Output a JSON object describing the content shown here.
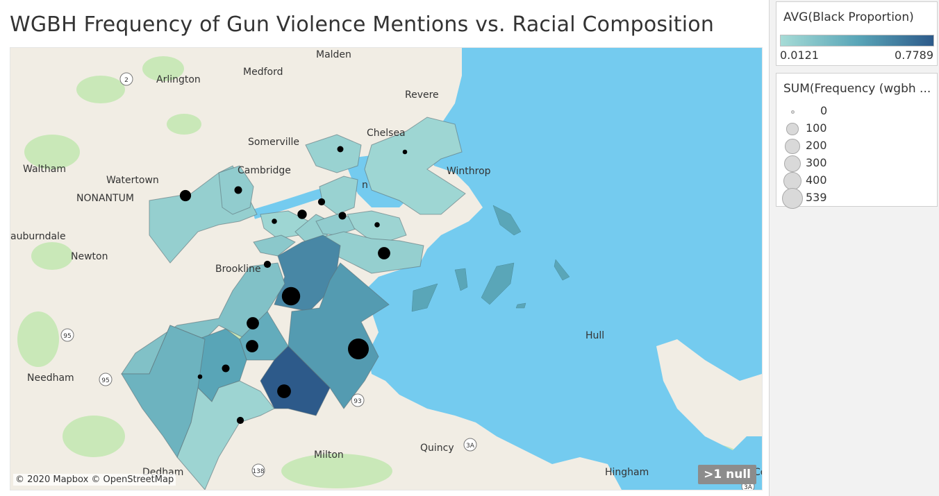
{
  "title": "WGBH Frequency of Gun Violence Mentions vs. Racial Composition",
  "map": {
    "attribution": "© 2020 Mapbox © OpenStreetMap",
    "null_badge": ">1 null",
    "place_labels": [
      "Malden",
      "Arlington",
      "Medford",
      "Revere",
      "Chelsea",
      "Somerville",
      "Winthrop",
      "Waltham",
      "Watertown",
      "Cambridge",
      "NONANTUM",
      "auburndale",
      "Newton",
      "Brookline",
      "Hull",
      "Needham",
      "Milton",
      "Quincy",
      "Dedham",
      "Hingham",
      "n",
      "Co"
    ],
    "road_shields": [
      "2",
      "95",
      "95",
      "93",
      "3A",
      "3A",
      "138"
    ],
    "colors": {
      "water": "#74cbef",
      "land": "#f1ede4",
      "park": "#c9e8b8",
      "low": "#a6dbd6",
      "mid": "#5aa6b8",
      "high": "#2d5a8a",
      "dot": "#000000"
    }
  },
  "chart_data": {
    "type": "map",
    "color_measure": "AVG(Black Proportion)",
    "color_range": [
      0.0121,
      0.7789
    ],
    "size_measure": "SUM(Frequency (wgbh ...",
    "size_legend": [
      0,
      100,
      200,
      300,
      400,
      539
    ],
    "neighborhoods": [
      {
        "black_proportion": 0.08,
        "frequency": 20
      },
      {
        "black_proportion": 0.05,
        "frequency": 5
      },
      {
        "black_proportion": 0.1,
        "frequency": 120
      },
      {
        "black_proportion": 0.12,
        "frequency": 40
      },
      {
        "black_proportion": 0.08,
        "frequency": 30
      },
      {
        "black_proportion": 0.05,
        "frequency": 10
      },
      {
        "black_proportion": 0.1,
        "frequency": 70
      },
      {
        "black_proportion": 0.12,
        "frequency": 40
      },
      {
        "black_proportion": 0.06,
        "frequency": 10
      },
      {
        "black_proportion": 0.15,
        "frequency": 30
      },
      {
        "black_proportion": 0.1,
        "frequency": 150
      },
      {
        "black_proportion": 0.55,
        "frequency": 400
      },
      {
        "black_proportion": 0.45,
        "frequency": 539
      },
      {
        "black_proportion": 0.2,
        "frequency": 150
      },
      {
        "black_proportion": 0.35,
        "frequency": 150
      },
      {
        "black_proportion": 0.78,
        "frequency": 200
      },
      {
        "black_proportion": 0.4,
        "frequency": 40
      },
      {
        "black_proportion": 0.06,
        "frequency": 30
      },
      {
        "black_proportion": 0.3,
        "frequency": 5
      }
    ]
  },
  "legend": {
    "color": {
      "title": "AVG(Black Proportion)",
      "min": "0.0121",
      "max": "0.7789"
    },
    "size": {
      "title": "SUM(Frequency (wgbh ...",
      "labels": [
        "0",
        "100",
        "200",
        "300",
        "400",
        "539"
      ]
    }
  }
}
